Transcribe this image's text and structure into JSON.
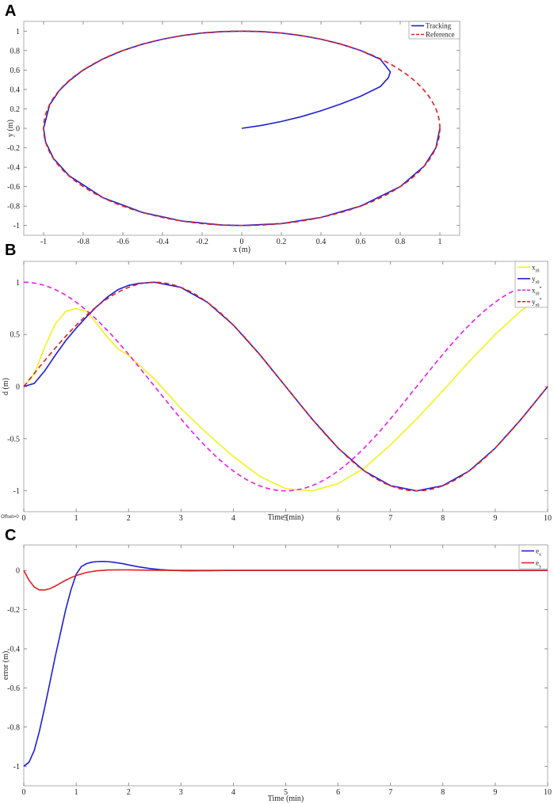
{
  "chart_data": [
    {
      "panel": "A",
      "type": "line",
      "xlabel": "x (m)",
      "ylabel": "y (m)",
      "xlim": [
        -1.1,
        1.1
      ],
      "ylim": [
        -1.1,
        1.1
      ],
      "xticks": [
        "-1",
        "-0.8",
        "-0.6",
        "-0.4",
        "-0.2",
        "0",
        "0.2",
        "0.4",
        "0.6",
        "0.8",
        "1"
      ],
      "yticks": [
        "-1",
        "-0.8",
        "-0.6",
        "-0.4",
        "-0.2",
        "0",
        "0.2",
        "0.4",
        "0.6",
        "0.8",
        "1"
      ],
      "legend_position": "top-right",
      "series": [
        {
          "name": "Tracking",
          "color": "#1f1fd6",
          "style": "solid",
          "x": [
            0,
            0.1,
            0.2,
            0.3,
            0.4,
            0.5,
            0.6,
            0.7,
            0.74,
            0.75,
            0.7,
            0.6,
            0.5,
            0.4,
            0.3,
            0.2,
            0.1,
            0,
            -0.1,
            -0.2,
            -0.3,
            -0.4,
            -0.5,
            -0.6,
            -0.7,
            -0.8,
            -0.87,
            -0.92,
            -0.97,
            -1,
            -0.99,
            -0.95,
            -0.87,
            -0.7,
            -0.5,
            -0.3,
            -0.1,
            0,
            0.2,
            0.4,
            0.6,
            0.8,
            0.92,
            0.98,
            1
          ],
          "y": [
            0,
            0.03,
            0.07,
            0.12,
            0.18,
            0.25,
            0.33,
            0.43,
            0.52,
            0.58,
            0.71,
            0.8,
            0.866,
            0.917,
            0.954,
            0.98,
            0.995,
            1,
            0.995,
            0.98,
            0.954,
            0.917,
            0.866,
            0.8,
            0.714,
            0.6,
            0.49,
            0.39,
            0.24,
            0,
            -0.14,
            -0.31,
            -0.49,
            -0.714,
            -0.866,
            -0.954,
            -0.995,
            -1,
            -0.98,
            -0.917,
            -0.8,
            -0.6,
            -0.39,
            -0.2,
            0
          ]
        },
        {
          "name": "Reference",
          "color": "#e0211f",
          "style": "dashed",
          "func": "circle"
        }
      ]
    },
    {
      "panel": "B",
      "type": "line",
      "xlabel": "Time (min)",
      "ylabel": "d (m)",
      "xlim": [
        0,
        10
      ],
      "ylim": [
        -1.2,
        1.2
      ],
      "xticks": [
        "0",
        "1",
        "2",
        "3",
        "4",
        "5",
        "6",
        "7",
        "8",
        "9",
        "10"
      ],
      "yticks": [
        "-1",
        "-0.5",
        "0",
        "0.5",
        "1"
      ],
      "note": "Offset=0",
      "legend_position": "top-right",
      "series": [
        {
          "name": "x",
          "sub": "r0",
          "color": "#f2f21c",
          "style": "solid",
          "x": [
            0,
            0.2,
            0.4,
            0.6,
            0.8,
            1.0,
            1.2,
            1.4,
            1.6,
            1.8,
            2.0,
            2.5,
            3,
            3.5,
            4,
            4.5,
            5,
            5.5,
            6,
            6.5,
            7,
            7.5,
            8,
            8.5,
            9,
            9.5,
            10
          ],
          "y": [
            0,
            0.12,
            0.38,
            0.6,
            0.72,
            0.75,
            0.72,
            0.6,
            0.47,
            0.36,
            0.3,
            0.07,
            -0.21,
            -0.45,
            -0.67,
            -0.86,
            -0.98,
            -1,
            -0.93,
            -0.78,
            -0.56,
            -0.31,
            -0.04,
            0.24,
            0.5,
            0.73,
            0.9
          ]
        },
        {
          "name": "y",
          "sub": "r0",
          "color": "#1f1fd6",
          "style": "solid",
          "x": [
            0,
            0.2,
            0.4,
            0.6,
            0.8,
            1.0,
            1.2,
            1.4,
            1.6,
            1.8,
            2.0,
            2.2,
            2.5,
            3,
            3.5,
            4,
            4.5,
            5,
            5.5,
            6,
            6.5,
            7,
            7.5,
            8,
            8.5,
            9,
            9.5,
            10
          ],
          "y": [
            0,
            0.03,
            0.15,
            0.3,
            0.44,
            0.56,
            0.67,
            0.77,
            0.86,
            0.93,
            0.97,
            0.99,
            1,
            0.95,
            0.81,
            0.59,
            0.31,
            0,
            -0.31,
            -0.59,
            -0.81,
            -0.95,
            -1,
            -0.95,
            -0.81,
            -0.59,
            -0.31,
            0
          ]
        },
        {
          "name": "x",
          "sub": "r0",
          "sup": "*",
          "color": "#e61ee6",
          "style": "dashed",
          "func": "cos"
        },
        {
          "name": "y",
          "sub": "r0",
          "sup": "*",
          "color": "#e0211f",
          "style": "dashed",
          "func": "sin"
        }
      ]
    },
    {
      "panel": "C",
      "type": "line",
      "xlabel": "Time (min)",
      "ylabel": "error (m)",
      "xlim": [
        0,
        10
      ],
      "ylim": [
        -1.1,
        0.13
      ],
      "xticks": [
        "0",
        "1",
        "2",
        "3",
        "4",
        "5",
        "6",
        "7",
        "8",
        "9",
        "10"
      ],
      "yticks": [
        "-1",
        "-0.8",
        "-0.6",
        "-0.4",
        "-0.2",
        "0"
      ],
      "legend_position": "top-right",
      "series": [
        {
          "name": "e",
          "sub": "x",
          "color": "#1f1fd6",
          "style": "solid",
          "x": [
            0,
            0.1,
            0.2,
            0.3,
            0.4,
            0.5,
            0.6,
            0.7,
            0.8,
            0.9,
            1.0,
            1.1,
            1.2,
            1.3,
            1.4,
            1.5,
            1.6,
            1.7,
            1.8,
            1.9,
            2.0,
            2.2,
            2.4,
            2.6,
            2.8,
            3.0,
            3.2,
            3.5,
            4,
            10
          ],
          "y": [
            -1,
            -0.98,
            -0.92,
            -0.82,
            -0.7,
            -0.57,
            -0.44,
            -0.32,
            -0.2,
            -0.1,
            -0.02,
            0.02,
            0.035,
            0.042,
            0.045,
            0.046,
            0.045,
            0.042,
            0.038,
            0.034,
            0.028,
            0.018,
            0.01,
            0.004,
            0.001,
            -0.001,
            -0.002,
            -0.001,
            0,
            0
          ]
        },
        {
          "name": "e",
          "sub": "y",
          "color": "#e0211f",
          "style": "solid",
          "x": [
            0,
            0.1,
            0.2,
            0.3,
            0.4,
            0.5,
            0.6,
            0.7,
            0.8,
            0.9,
            1.0,
            1.2,
            1.4,
            1.6,
            1.8,
            2.0,
            2.5,
            3,
            10
          ],
          "y": [
            0,
            -0.05,
            -0.085,
            -0.1,
            -0.1,
            -0.093,
            -0.08,
            -0.065,
            -0.05,
            -0.037,
            -0.026,
            -0.01,
            -0.002,
            0.002,
            0.003,
            0.003,
            0.001,
            0,
            0
          ]
        }
      ]
    }
  ]
}
